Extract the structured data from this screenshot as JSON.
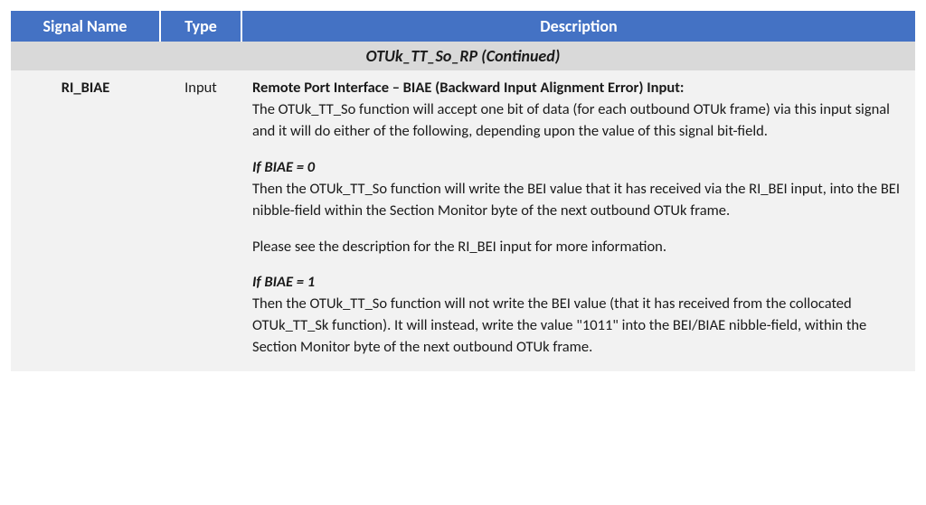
{
  "colors": {
    "header_bg": "#4472c4",
    "header_text": "#ffffff",
    "body_bg": "#f2f2f2",
    "section_bg": "#d9d9d9",
    "text": "#1a1a1a",
    "cell_border": "#ffffff"
  },
  "header": {
    "signal": "Signal Name",
    "type": "Type",
    "description": "Description"
  },
  "section_title": "OTUk_TT_So_RP (Continued)",
  "row": {
    "signal": "RI_BIAE",
    "type": "Input",
    "desc": {
      "title": "Remote Port Interface – BIAE (Backward Input Alignment Error) Input:",
      "intro": "The OTUk_TT_So function will accept one bit of data (for each outbound OTUk frame) via this input signal and it will do either of the following, depending upon the value of this signal bit-field.",
      "cond0_label": "If BIAE = 0",
      "cond0_body": "Then the OTUk_TT_So function will write the BEI value that it has received via the RI_BEI input, into the BEI nibble-field within the Section Monitor byte of the next outbound OTUk frame.",
      "cond0_note": "Please see the description for the RI_BEI input for more information.",
      "cond1_label": "If BIAE = 1",
      "cond1_body": "Then the OTUk_TT_So function will not write the BEI value (that it has received from the collocated OTUk_TT_Sk function).  It will instead, write the value \"1011\" into the BEI/BIAE nibble-field, within the Section Monitor byte of the next outbound OTUk frame."
    }
  }
}
